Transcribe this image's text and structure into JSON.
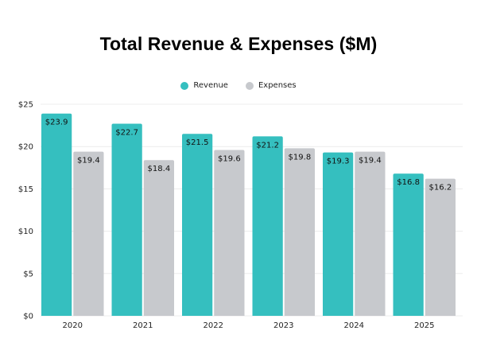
{
  "chart_data": {
    "type": "bar",
    "title": "Total Revenue & Expenses ($M)",
    "xlabel": "",
    "ylabel": "",
    "categories": [
      "2020",
      "2021",
      "2022",
      "2023",
      "2024",
      "2025"
    ],
    "series": [
      {
        "name": "Revenue",
        "color": "#35bfbf",
        "values": [
          23.9,
          22.7,
          21.5,
          21.2,
          19.3,
          16.8
        ],
        "labels": [
          "$23.9",
          "$22.7",
          "$21.5",
          "$21.2",
          "$19.3",
          "$16.8"
        ]
      },
      {
        "name": "Expenses",
        "color": "#c7c9cd",
        "values": [
          19.4,
          18.4,
          19.6,
          19.8,
          19.4,
          16.2
        ],
        "labels": [
          "$19.4",
          "$18.4",
          "$19.6",
          "$19.8",
          "$19.4",
          "$16.2"
        ]
      }
    ],
    "ylim": [
      0,
      25
    ],
    "yticks": [
      0,
      5,
      10,
      15,
      20,
      25
    ],
    "ytick_labels": [
      "$0",
      "$5",
      "$10",
      "$15",
      "$20",
      "$25"
    ],
    "grid": true,
    "legend_position": "top-center",
    "data_labels": "inside-top"
  }
}
